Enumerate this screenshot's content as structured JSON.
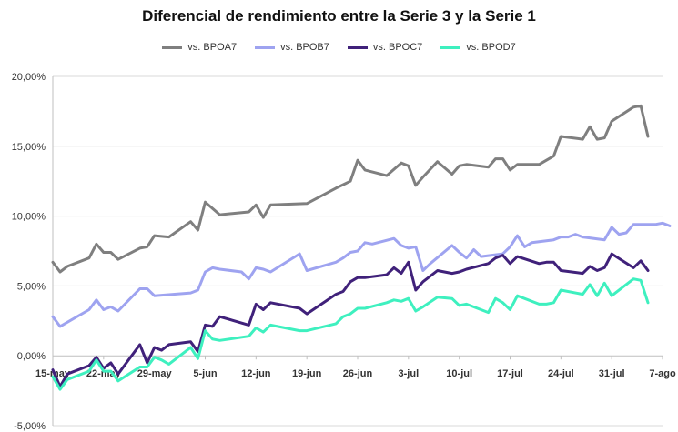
{
  "chart_data": {
    "type": "line",
    "title": "Diferencial de rendimiento entre la Serie 3 y la Serie 1",
    "xlabel": "",
    "ylabel": "",
    "ylim": [
      -5,
      20
    ],
    "yticks": [
      -5,
      0,
      5,
      10,
      15,
      20
    ],
    "ytick_labels": [
      "-5,00%",
      "0,00%",
      "5,00%",
      "10,00%",
      "15,00%",
      "20,00%"
    ],
    "xlim": [
      0,
      84
    ],
    "xticks": [
      0,
      7,
      14,
      21,
      28,
      35,
      42,
      49,
      56,
      63,
      70,
      77,
      84
    ],
    "xtick_labels": [
      "15-may",
      "22-may",
      "29-may",
      "5-jun",
      "12-jun",
      "19-jun",
      "26-jun",
      "3-jul",
      "10-jul",
      "17-jul",
      "24-jul",
      "31-jul",
      "7-ago"
    ],
    "x_unit": "days from 15-may",
    "grid": "horizontal",
    "legend_position": "top",
    "series": [
      {
        "name": "vs. BPOA7",
        "color": "#7f7f7f",
        "points": [
          [
            0,
            6.7
          ],
          [
            1,
            6.0
          ],
          [
            2,
            6.4
          ],
          [
            5,
            7.0
          ],
          [
            6,
            8.0
          ],
          [
            7,
            7.4
          ],
          [
            8,
            7.4
          ],
          [
            9,
            6.9
          ],
          [
            12,
            7.7
          ],
          [
            13,
            7.8
          ],
          [
            14,
            8.6
          ],
          [
            16,
            8.5
          ],
          [
            19,
            9.6
          ],
          [
            20,
            9.0
          ],
          [
            21,
            11.0
          ],
          [
            23,
            10.1
          ],
          [
            27,
            10.3
          ],
          [
            28,
            10.8
          ],
          [
            29,
            9.9
          ],
          [
            30,
            10.8
          ],
          [
            35,
            10.9
          ],
          [
            39,
            12.0
          ],
          [
            41,
            12.5
          ],
          [
            42,
            14.0
          ],
          [
            43,
            13.3
          ],
          [
            46,
            12.9
          ],
          [
            48,
            13.8
          ],
          [
            49,
            13.6
          ],
          [
            50,
            12.2
          ],
          [
            51,
            12.8
          ],
          [
            53,
            13.9
          ],
          [
            55,
            13.0
          ],
          [
            56,
            13.6
          ],
          [
            57,
            13.7
          ],
          [
            60,
            13.5
          ],
          [
            61,
            14.1
          ],
          [
            62,
            14.1
          ],
          [
            63,
            13.3
          ],
          [
            64,
            13.7
          ],
          [
            67,
            13.7
          ],
          [
            68,
            14.0
          ],
          [
            69,
            14.3
          ],
          [
            70,
            15.7
          ],
          [
            73,
            15.5
          ],
          [
            74,
            16.4
          ],
          [
            75,
            15.5
          ],
          [
            76,
            15.6
          ],
          [
            77,
            16.8
          ],
          [
            80,
            17.8
          ],
          [
            81,
            17.9
          ],
          [
            82,
            15.7
          ]
        ]
      },
      {
        "name": "vs. BPOB7",
        "color": "#9ea3f0",
        "points": [
          [
            0,
            2.8
          ],
          [
            1,
            2.1
          ],
          [
            5,
            3.3
          ],
          [
            6,
            4.0
          ],
          [
            7,
            3.3
          ],
          [
            8,
            3.5
          ],
          [
            9,
            3.2
          ],
          [
            12,
            4.8
          ],
          [
            13,
            4.8
          ],
          [
            14,
            4.3
          ],
          [
            19,
            4.5
          ],
          [
            20,
            4.7
          ],
          [
            21,
            6.0
          ],
          [
            22,
            6.3
          ],
          [
            23,
            6.2
          ],
          [
            26,
            6.0
          ],
          [
            27,
            5.5
          ],
          [
            28,
            6.3
          ],
          [
            29,
            6.2
          ],
          [
            30,
            6.0
          ],
          [
            34,
            7.3
          ],
          [
            35,
            6.1
          ],
          [
            39,
            6.7
          ],
          [
            40,
            7.0
          ],
          [
            41,
            7.4
          ],
          [
            42,
            7.5
          ],
          [
            43,
            8.1
          ],
          [
            44,
            8.0
          ],
          [
            47,
            8.4
          ],
          [
            48,
            7.9
          ],
          [
            49,
            7.7
          ],
          [
            50,
            7.8
          ],
          [
            51,
            6.1
          ],
          [
            52,
            6.6
          ],
          [
            55,
            7.9
          ],
          [
            56,
            7.4
          ],
          [
            57,
            7.0
          ],
          [
            58,
            7.6
          ],
          [
            59,
            7.1
          ],
          [
            62,
            7.3
          ],
          [
            63,
            7.8
          ],
          [
            64,
            8.6
          ],
          [
            65,
            7.8
          ],
          [
            66,
            8.1
          ],
          [
            69,
            8.3
          ],
          [
            70,
            8.5
          ],
          [
            71,
            8.5
          ],
          [
            72,
            8.7
          ],
          [
            73,
            8.5
          ],
          [
            76,
            8.3
          ],
          [
            77,
            9.2
          ],
          [
            78,
            8.7
          ],
          [
            79,
            8.8
          ],
          [
            80,
            9.4
          ],
          [
            83,
            9.4
          ],
          [
            84,
            9.5
          ],
          [
            85,
            9.3
          ]
        ]
      },
      {
        "name": "vs. BPOC7",
        "color": "#40217a",
        "points": [
          [
            0,
            -1.0
          ],
          [
            1,
            -2.2
          ],
          [
            2,
            -1.3
          ],
          [
            5,
            -0.7
          ],
          [
            6,
            -0.1
          ],
          [
            7,
            -0.9
          ],
          [
            8,
            -0.5
          ],
          [
            9,
            -1.3
          ],
          [
            12,
            0.8
          ],
          [
            13,
            -0.5
          ],
          [
            14,
            0.6
          ],
          [
            15,
            0.4
          ],
          [
            16,
            0.8
          ],
          [
            19,
            1.0
          ],
          [
            20,
            0.3
          ],
          [
            21,
            2.2
          ],
          [
            22,
            2.1
          ],
          [
            23,
            2.8
          ],
          [
            27,
            2.2
          ],
          [
            28,
            3.7
          ],
          [
            29,
            3.3
          ],
          [
            30,
            3.8
          ],
          [
            34,
            3.4
          ],
          [
            35,
            3.0
          ],
          [
            39,
            4.4
          ],
          [
            40,
            4.6
          ],
          [
            41,
            5.3
          ],
          [
            42,
            5.6
          ],
          [
            43,
            5.6
          ],
          [
            46,
            5.8
          ],
          [
            47,
            6.3
          ],
          [
            48,
            5.9
          ],
          [
            49,
            6.7
          ],
          [
            50,
            4.7
          ],
          [
            51,
            5.3
          ],
          [
            53,
            6.1
          ],
          [
            55,
            5.9
          ],
          [
            56,
            6.0
          ],
          [
            57,
            6.2
          ],
          [
            60,
            6.6
          ],
          [
            61,
            7.0
          ],
          [
            62,
            7.2
          ],
          [
            63,
            6.6
          ],
          [
            64,
            7.1
          ],
          [
            67,
            6.6
          ],
          [
            68,
            6.7
          ],
          [
            69,
            6.7
          ],
          [
            70,
            6.1
          ],
          [
            73,
            5.9
          ],
          [
            74,
            6.4
          ],
          [
            75,
            6.1
          ],
          [
            76,
            6.3
          ],
          [
            77,
            7.3
          ],
          [
            80,
            6.3
          ],
          [
            81,
            6.8
          ],
          [
            82,
            6.1
          ]
        ]
      },
      {
        "name": "vs. BPOD7",
        "color": "#3ef0bf",
        "points": [
          [
            0,
            -1.5
          ],
          [
            1,
            -2.4
          ],
          [
            2,
            -1.7
          ],
          [
            5,
            -1.1
          ],
          [
            6,
            -0.3
          ],
          [
            7,
            -1.1
          ],
          [
            8,
            -1.1
          ],
          [
            9,
            -1.8
          ],
          [
            12,
            -0.8
          ],
          [
            13,
            -0.8
          ],
          [
            14,
            -0.1
          ],
          [
            15,
            -0.3
          ],
          [
            16,
            -0.6
          ],
          [
            19,
            0.6
          ],
          [
            20,
            -0.2
          ],
          [
            21,
            1.8
          ],
          [
            22,
            1.2
          ],
          [
            23,
            1.1
          ],
          [
            27,
            1.4
          ],
          [
            28,
            2.0
          ],
          [
            29,
            1.7
          ],
          [
            30,
            2.2
          ],
          [
            34,
            1.8
          ],
          [
            35,
            1.8
          ],
          [
            39,
            2.3
          ],
          [
            40,
            2.8
          ],
          [
            41,
            3.0
          ],
          [
            42,
            3.4
          ],
          [
            43,
            3.4
          ],
          [
            46,
            3.8
          ],
          [
            47,
            4.0
          ],
          [
            48,
            3.9
          ],
          [
            49,
            4.1
          ],
          [
            50,
            3.2
          ],
          [
            51,
            3.5
          ],
          [
            53,
            4.2
          ],
          [
            55,
            4.1
          ],
          [
            56,
            3.6
          ],
          [
            57,
            3.7
          ],
          [
            60,
            3.1
          ],
          [
            61,
            4.1
          ],
          [
            62,
            3.8
          ],
          [
            63,
            3.3
          ],
          [
            64,
            4.3
          ],
          [
            67,
            3.7
          ],
          [
            68,
            3.7
          ],
          [
            69,
            3.8
          ],
          [
            70,
            4.7
          ],
          [
            73,
            4.4
          ],
          [
            74,
            5.1
          ],
          [
            75,
            4.3
          ],
          [
            76,
            5.2
          ],
          [
            77,
            4.3
          ],
          [
            80,
            5.5
          ],
          [
            81,
            5.4
          ],
          [
            82,
            3.8
          ]
        ]
      }
    ]
  }
}
